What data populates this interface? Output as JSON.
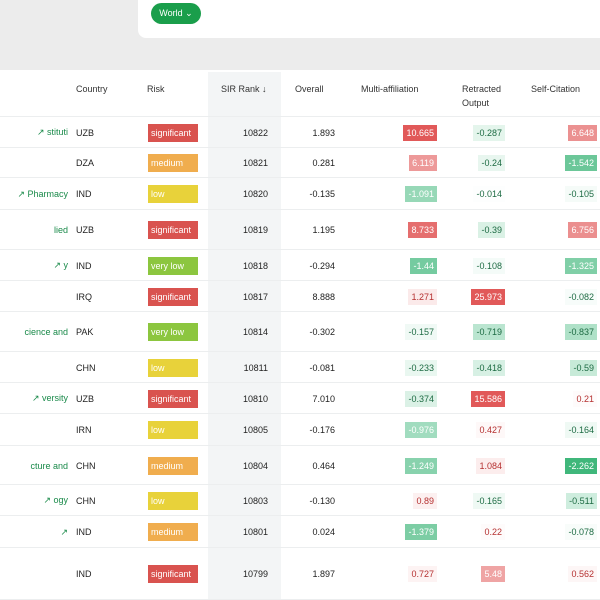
{
  "filter": {
    "label": "World"
  },
  "table": {
    "columns": [
      "Country",
      "Risk",
      "SIR Rank ↓",
      "Overall",
      "Multi-affiliation",
      "Retracted Output",
      "Self-Citation"
    ],
    "risk_colors": {
      "significant": "#d9534f",
      "medium": "#f0ad4e",
      "low": "#e8d23a",
      "very low": "#8cc63f"
    },
    "rows": [
      {
        "name": "stituti ↗",
        "country": "UZB",
        "risk": "significant",
        "rank": "10822",
        "overall": "1.893",
        "multi": "10.665",
        "retracted": "-0.287",
        "self": "6.648"
      },
      {
        "country": "DZA",
        "risk": "medium",
        "rank": "10821",
        "overall": "0.281",
        "multi": "6.119",
        "retracted": "-0.24",
        "self": "-1.542"
      },
      {
        "name": "Pharmacy ↗",
        "country": "IND",
        "risk": "low",
        "rank": "10820",
        "overall": "-0.135",
        "multi": "-1.091",
        "retracted": "-0.014",
        "self": "-0.105"
      },
      {
        "name": "lied",
        "country": "UZB",
        "risk": "significant",
        "rank": "10819",
        "overall": "1.195",
        "multi": "8.733",
        "retracted": "-0.39",
        "self": "6.756"
      },
      {
        "name": "y ↗",
        "country": "IND",
        "risk": "very low",
        "rank": "10818",
        "overall": "-0.294",
        "multi": "-1.44",
        "retracted": "-0.108",
        "self": "-1.325"
      },
      {
        "country": "IRQ",
        "risk": "significant",
        "rank": "10817",
        "overall": "8.888",
        "multi": "1.271",
        "retracted": "25.973",
        "self": "-0.082"
      },
      {
        "name": "cience and",
        "country": "PAK",
        "risk": "very low",
        "rank": "10814",
        "overall": "-0.302",
        "multi": "-0.157",
        "retracted": "-0.719",
        "self": "-0.837"
      },
      {
        "country": "CHN",
        "risk": "low",
        "rank": "10811",
        "overall": "-0.081",
        "multi": "-0.233",
        "retracted": "-0.418",
        "self": "-0.59"
      },
      {
        "name": "versity ↗",
        "country": "UZB",
        "risk": "significant",
        "rank": "10810",
        "overall": "7.010",
        "multi": "-0.374",
        "retracted": "15.586",
        "self": "0.21"
      },
      {
        "country": "IRN",
        "risk": "low",
        "rank": "10805",
        "overall": "-0.176",
        "multi": "-0.976",
        "retracted": "0.427",
        "self": "-0.164"
      },
      {
        "name": "cture and",
        "country": "CHN",
        "risk": "medium",
        "rank": "10804",
        "overall": "0.464",
        "multi": "-1.249",
        "retracted": "1.084",
        "self": "-2.262"
      },
      {
        "name": "ogy ↗",
        "country": "CHN",
        "risk": "low",
        "rank": "10803",
        "overall": "-0.130",
        "multi": "0.89",
        "retracted": "-0.165",
        "self": "-0.511"
      },
      {
        "name": "↗",
        "country": "IND",
        "risk": "medium",
        "rank": "10801",
        "overall": "0.024",
        "multi": "-1.379",
        "retracted": "0.22",
        "self": "-0.078"
      },
      {
        "country": "IND",
        "risk": "significant",
        "rank": "10799",
        "overall": "1.897",
        "multi": "0.727",
        "retracted": "5.48",
        "self": "0.562"
      }
    ]
  }
}
